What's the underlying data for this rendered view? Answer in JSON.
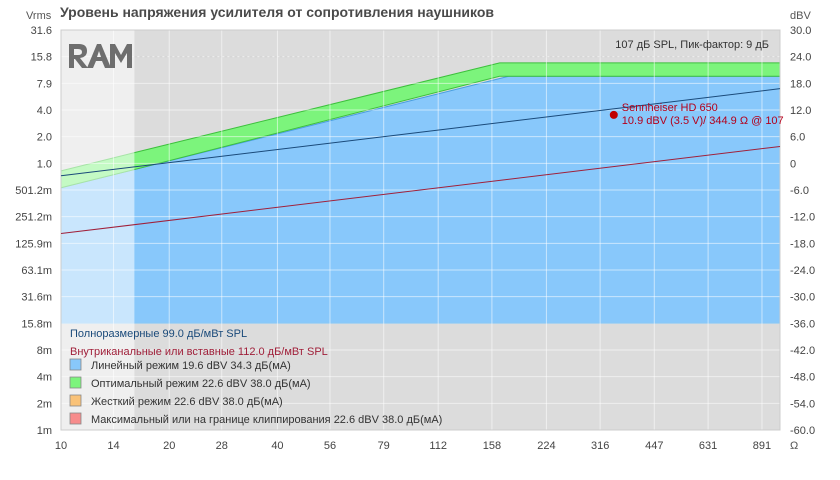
{
  "chart_data": {
    "type": "area",
    "title": "Уровень напряжения усилителя от сопротивления наушников",
    "left_unit": "Vrms",
    "right_unit": "dBV",
    "x_unit": "Ω",
    "x_scale": "log",
    "x_ticks": [
      "10",
      "14",
      "20",
      "28",
      "40",
      "56",
      "79",
      "112",
      "158",
      "224",
      "316",
      "447",
      "631",
      "891"
    ],
    "left_ticks": [
      "31.6",
      "15.8",
      "7.9",
      "4.0",
      "2.0",
      "1.0",
      "501.2m",
      "251.2m",
      "125.9m",
      "63.1m",
      "31.6m",
      "15.8m",
      "8m",
      "4m",
      "2m",
      "1m"
    ],
    "right_ticks": [
      "30.0",
      "24.0",
      "18.0",
      "12.0",
      "6.0",
      "0",
      "-6.0",
      "-12.0",
      "-18.0",
      "-24.0",
      "-30.0",
      "-36.0",
      "-42.0",
      "-48.0",
      "-54.0",
      "-60.0"
    ],
    "ylim_dbv": [
      -60,
      30
    ],
    "xlim_ohm": [
      10,
      1000
    ],
    "grid": true,
    "annotation": "107 дБ SPL, Пик-фактор: 9 дБ",
    "inactive_region_below_ohm": 16,
    "series": [
      {
        "name": "Линейный режим 19.6 dBV 34.3 дБ(мА)",
        "kind": "band",
        "color": "#88c8fb",
        "x": [
          10,
          16,
          176,
          1000
        ],
        "y_top": [
          -5.5,
          -1.4,
          19.6,
          19.6
        ],
        "y_bottom": [
          -36,
          -36,
          -36,
          -36
        ]
      },
      {
        "name": "Оптимальный режим 22.6 dBV 38.0 дБ(мА)",
        "kind": "band",
        "color": "#7cf47c",
        "x": [
          10,
          16,
          166,
          1000
        ],
        "y_top": [
          -1.7,
          2.4,
          22.6,
          22.6
        ],
        "y_bottom": [
          -5.5,
          -1.4,
          19.6,
          19.6
        ]
      },
      {
        "name": "Жесткий режим 22.6 dBV 38.0 дБ(мА)",
        "kind": "legend-only",
        "color": "#f9c278"
      },
      {
        "name": "Максимальный или на границе клиппирования 22.6 dBV 38.0 дБ(мА)",
        "kind": "legend-only",
        "color": "#f78c8c"
      },
      {
        "name": "Полноразмерные 99.0 дБ/мВт SPL",
        "kind": "line",
        "color": "#1a4a7a",
        "x": [
          10,
          1000
        ],
        "y": [
          -2.8,
          16.8
        ]
      },
      {
        "name": "Внутриканальные или вставные 112.0 дБ/мВт SPL",
        "kind": "line",
        "color": "#a0203a",
        "x": [
          10,
          1000
        ],
        "y": [
          -15.8,
          3.8
        ]
      }
    ],
    "points": [
      {
        "name": "Sennheiser HD 650",
        "label_line2": "10.9 dBV (3.5 V)/ 344.9 Ω @ 107",
        "x": 344.9,
        "y": 10.9,
        "color": "#c00000"
      }
    ]
  }
}
